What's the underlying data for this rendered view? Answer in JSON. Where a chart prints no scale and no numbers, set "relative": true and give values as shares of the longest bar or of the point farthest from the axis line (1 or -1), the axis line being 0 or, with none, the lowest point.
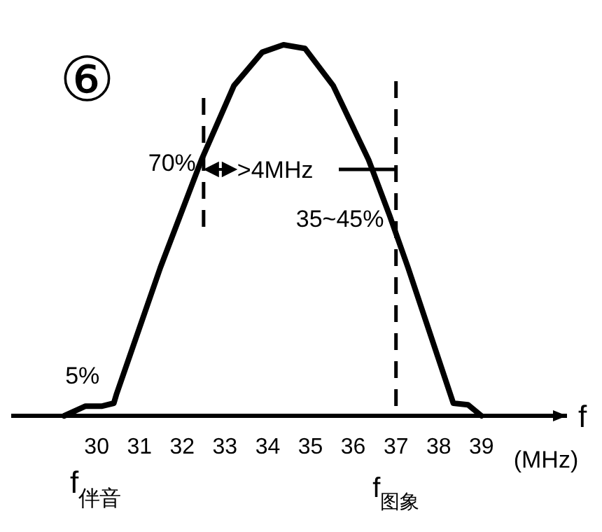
{
  "chart_data": {
    "type": "line",
    "title": "⑥",
    "xlabel": "(MHz)",
    "relative": true,
    "color": "#000000",
    "line_style": "solid",
    "xlim": [
      28,
      41
    ],
    "xticks": [
      30,
      31,
      32,
      33,
      34,
      35,
      36,
      37,
      38,
      39
    ],
    "x": [
      29.24,
      29.74,
      30.13,
      30.4,
      30.46,
      31.49,
      32.45,
      33.21,
      33.87,
      34.37,
      34.87,
      35.53,
      36.36,
      36.85,
      37.28,
      38.34,
      38.68,
      39.0
    ],
    "values": [
      0,
      0.026,
      0.026,
      0.034,
      0.057,
      0.4,
      0.69,
      0.89,
      0.98,
      1.0,
      0.99,
      0.89,
      0.69,
      0.54,
      0.4,
      0.034,
      0.03,
      0
    ],
    "ref_lines": [
      {
        "axis": "x",
        "value": 32.5,
        "label": null,
        "line_style": "dashed"
      },
      {
        "axis": "x",
        "value": 37,
        "label": "f$_{图象}$",
        "line_style": "dashed"
      }
    ],
    "annotations": [
      {
        "text": "70%",
        "x": 32.45,
        "y": 0.69
      },
      {
        "text": "5%",
        "x": 30.2,
        "y": 0.034
      },
      {
        "text": "35~45%",
        "x": 36.85,
        "y": 0.54
      },
      ">4MHz",
      "f",
      "f$_{伴音}$"
    ]
  }
}
